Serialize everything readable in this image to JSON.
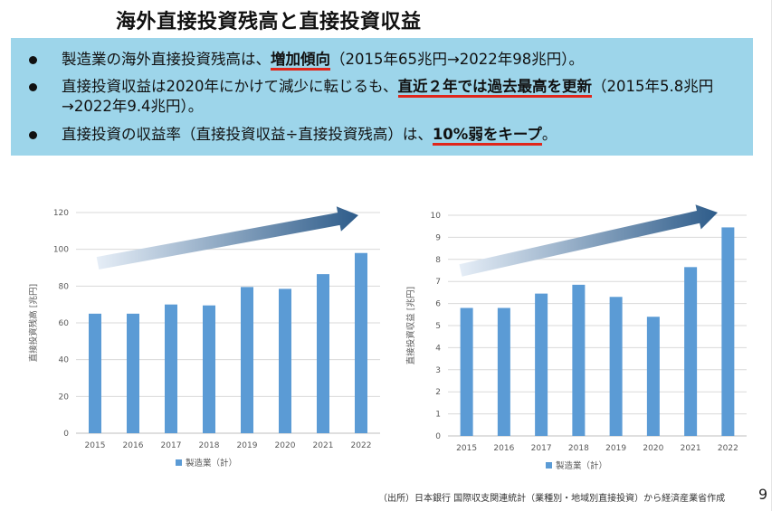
{
  "title": "海外直接投資残高と直接投資収益",
  "bullets": [
    {
      "pre": "製造業の海外直接投資残高は、",
      "em": "増加傾向",
      "post": "（2015年65兆円→2022年98兆円）。"
    },
    {
      "pre": "直接投資収益は2020年にかけて減少に転じるも、",
      "em": "直近２年では過去最高を更新",
      "post": "（2015年5.8兆円→2022年9.4兆円）。"
    },
    {
      "pre": "直接投資の収益率（直接投資収益÷直接投資残高）は、",
      "em": "10%弱をキープ",
      "post": "。"
    }
  ],
  "chart_data": [
    {
      "type": "bar",
      "categories": [
        "2015",
        "2016",
        "2017",
        "2018",
        "2019",
        "2020",
        "2021",
        "2022"
      ],
      "series": [
        {
          "name": "製造業（計）",
          "values": [
            65,
            65,
            70,
            69.5,
            79.5,
            78.5,
            86.5,
            98
          ]
        }
      ],
      "ylabel": "直接投資残高 [兆円]",
      "yticks": [
        "0",
        "20",
        "40",
        "60",
        "80",
        "100",
        "120"
      ],
      "ylim": [
        0,
        120
      ],
      "grid": true,
      "legend_position": "bottom",
      "color": "#5b9bd5"
    },
    {
      "type": "bar",
      "categories": [
        "2015",
        "2016",
        "2017",
        "2018",
        "2019",
        "2020",
        "2021",
        "2022"
      ],
      "series": [
        {
          "name": "製造業（計）",
          "values": [
            5.8,
            5.8,
            6.45,
            6.85,
            6.3,
            5.4,
            7.65,
            9.45
          ]
        }
      ],
      "ylabel": "直接投資収益 [兆円]",
      "yticks": [
        "0",
        "1",
        "2",
        "3",
        "4",
        "5",
        "6",
        "7",
        "8",
        "9",
        "10"
      ],
      "ylim": [
        0,
        10
      ],
      "grid": true,
      "legend_position": "bottom",
      "color": "#5b9bd5"
    }
  ],
  "footer": "（出所）日本銀行 国際収支関連統計（業種別・地域別直接投資）から経済産業省作成",
  "page_number": "9"
}
